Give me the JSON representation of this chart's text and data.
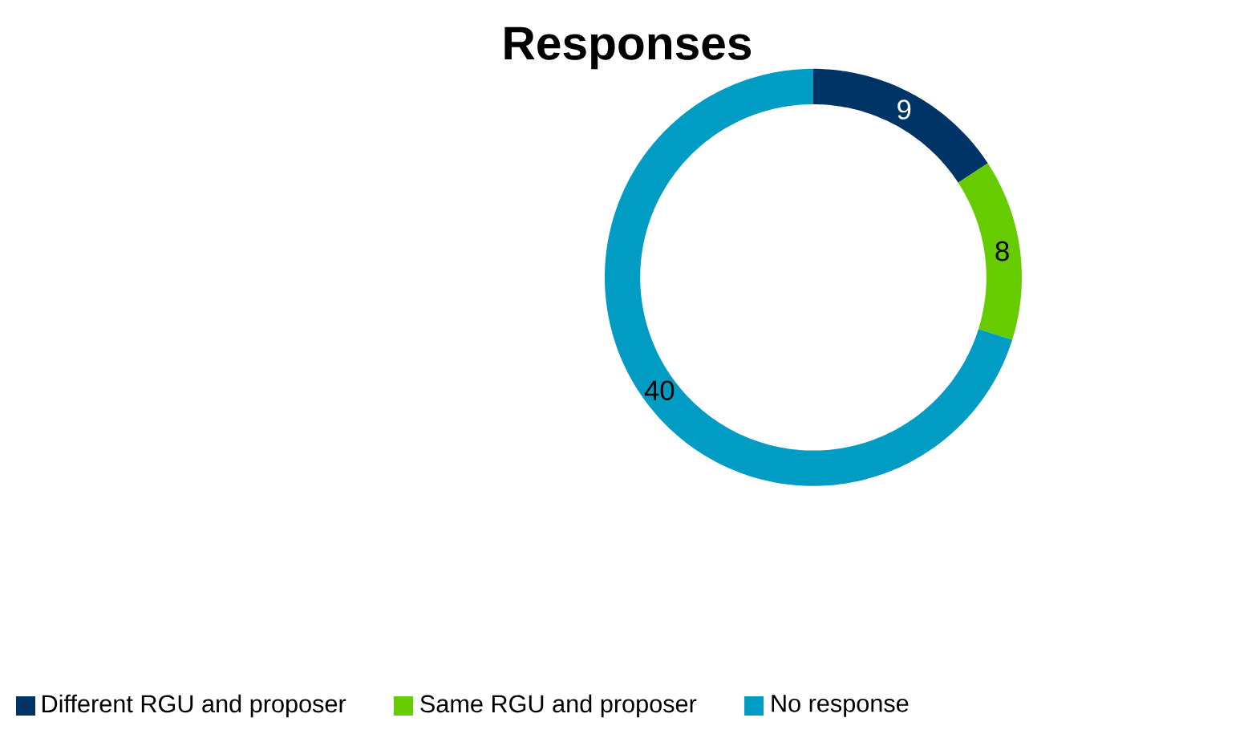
{
  "chart_data": {
    "type": "donut",
    "title": "Responses",
    "categories": [
      "Different RGU and proposer",
      "Same RGU and proposer",
      "No response"
    ],
    "values": [
      9,
      8,
      40
    ],
    "colors": [
      "#003366",
      "#66cc00",
      "#009cc4"
    ],
    "data_labels": true,
    "legend": "bottom"
  }
}
